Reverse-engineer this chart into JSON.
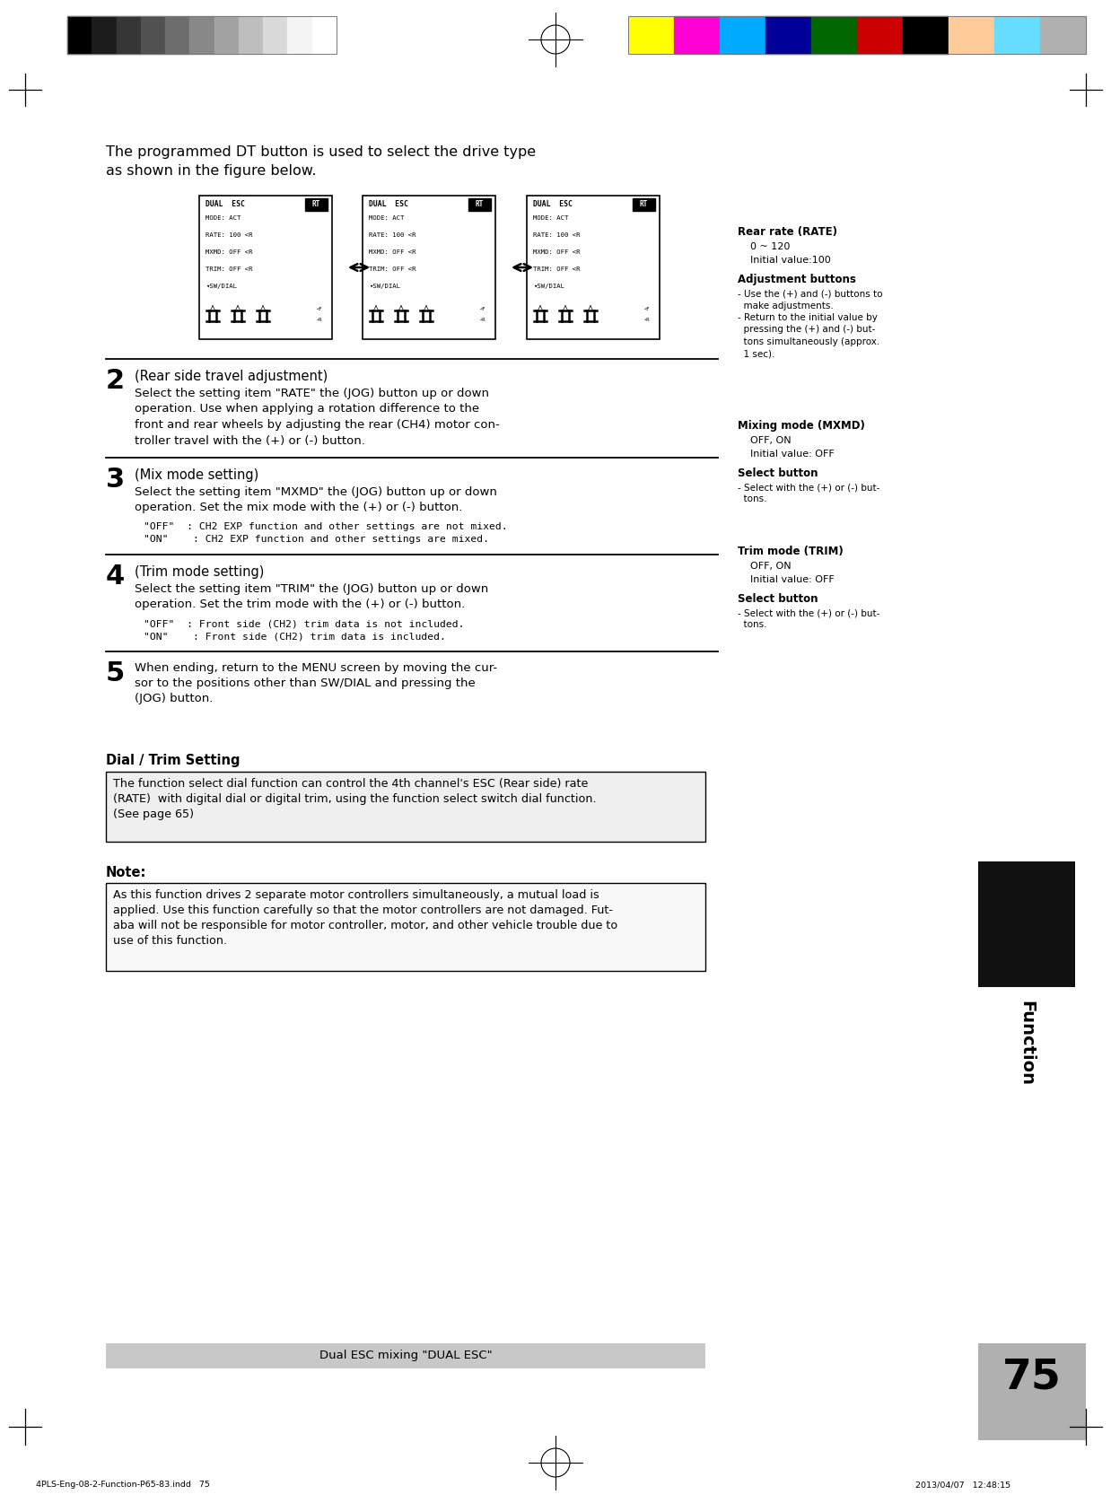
{
  "page_number": "75",
  "function_label": "Function",
  "footer_text": "Dual ESC mixing \"DUAL ESC\"",
  "file_info_left": "4PLS-Eng-08-2-Function-P65-83.indd   75",
  "file_info_right": "2013/04/07   12:48:15",
  "intro_text_line1": "The programmed DT button is used to select the drive type",
  "intro_text_line2": "as shown in the figure below.",
  "grayscale_colors": [
    "#000000",
    "#1c1c1c",
    "#363636",
    "#515151",
    "#6d6d6d",
    "#888888",
    "#a3a3a3",
    "#bebebe",
    "#d9d9d9",
    "#f4f4f4",
    "#ffffff"
  ],
  "cmyk_colors": [
    "#ffff00",
    "#ff00d4",
    "#00aaff",
    "#000099",
    "#006600",
    "#cc0000",
    "#000000",
    "#ffcc99",
    "#66ddff",
    "#b0b0b0"
  ],
  "section2_number": "2",
  "section2_title": "(Rear side travel adjustment)",
  "section2_line1": "Select the setting item \"RATE\" the (JOG) button up or down",
  "section2_line2": "operation. Use when applying a rotation difference to the",
  "section2_line3": "front and rear wheels by adjusting the rear (CH4) motor con-",
  "section2_line4": "troller travel with the (+) or (-) button.",
  "section3_number": "3",
  "section3_title": "(Mix mode setting)",
  "section3_line1": "Select the setting item \"MXMD\" the (JOG) button up or down",
  "section3_line2": "operation. Set the mix mode with the (+) or (-) button.",
  "section3_off": "\"OFF\"  : CH2 EXP function and other settings are not mixed.",
  "section3_on": "\"ON\"    : CH2 EXP function and other settings are mixed.",
  "section4_number": "4",
  "section4_title": "(Trim mode setting)",
  "section4_line1": "Select the setting item \"TRIM\" the (JOG) button up or down",
  "section4_line2": "operation. Set the trim mode with the (+) or (-) button.",
  "section4_off": "\"OFF\"  : Front side (CH2) trim data is not included.",
  "section4_on": "\"ON\"    : Front side (CH2) trim data is included.",
  "section5_number": "5",
  "section5_line1": "When ending, return to the MENU screen by moving the cur-",
  "section5_line2": "sor to the positions other than SW/DIAL and pressing the",
  "section5_line3": "(JOG) button.",
  "dial_trim_title": "Dial / Trim Setting",
  "dial_trim_line1": "The function select dial function can control the 4th channel's ESC (Rear side) rate",
  "dial_trim_line2": "(RATE)  with digital dial or digital trim, using the function select switch dial function.",
  "dial_trim_line3": "(See page 65)",
  "note_title": "Note:",
  "note_line1": "As this function drives 2 separate motor controllers simultaneously, a mutual load is",
  "note_line2": "applied. Use this function carefully so that the motor controllers are not damaged. Fut-",
  "note_line3": "aba will not be responsible for motor controller, motor, and other vehicle trouble due to",
  "note_line4": "use of this function.",
  "rp_rate_title": "Rear rate (RATE)",
  "rp_rate_range": "0 ~ 120",
  "rp_rate_initial": "Initial value:100",
  "rp_adj_title": "Adjustment buttons",
  "rp_adj_1": "- Use the (+) and (-) buttons to",
  "rp_adj_2": "  make adjustments.",
  "rp_adj_3": "- Return to the initial value by",
  "rp_adj_4": "  pressing the (+) and (-) but-",
  "rp_adj_5": "  tons simultaneously (approx.",
  "rp_adj_6": "  1 sec).",
  "rp_mix_title": "Mixing mode (MXMD)",
  "rp_mix_range": "OFF, ON",
  "rp_mix_initial": "Initial value: OFF",
  "rp_sel1_title": "Select button",
  "rp_sel1_1": "- Select with the (+) or (-) but-",
  "rp_sel1_2": "  tons.",
  "rp_trim_title": "Trim mode (TRIM)",
  "rp_trim_range": "OFF, ON",
  "rp_trim_initial": "Initial value: OFF",
  "rp_sel2_title": "Select button",
  "rp_sel2_1": "- Select with the (+) or (-) but-",
  "rp_sel2_2": "  tons.",
  "bg_color": "#ffffff"
}
